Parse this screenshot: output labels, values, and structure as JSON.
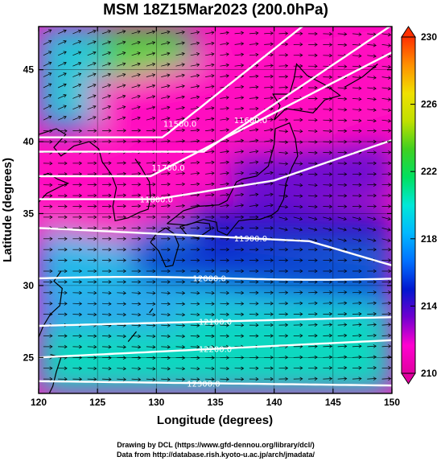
{
  "chart_data": {
    "type": "heatmap",
    "title": "MSM 18Z15Mar2023 (200.0hPa)",
    "xlabel": "Longitude (degrees)",
    "ylabel": "Latitude  (degrees)",
    "xlim": [
      120,
      150
    ],
    "ylim": [
      22.5,
      48
    ],
    "x_ticks": [
      "120",
      "125",
      "130",
      "135",
      "140",
      "145",
      "150"
    ],
    "y_ticks": [
      "25",
      "30",
      "35",
      "40",
      "45"
    ],
    "colorbar": {
      "ticks": [
        "210",
        "214",
        "218",
        "222",
        "226",
        "230"
      ],
      "range": [
        210,
        230
      ],
      "colors": [
        "#e000a0",
        "#ff00d0",
        "#7000d0",
        "#0018d0",
        "#0070ff",
        "#00b8ff",
        "#00e8d8",
        "#00e060",
        "#40d020",
        "#c0e000",
        "#f0e000",
        "#ff9000",
        "#ff3000"
      ]
    },
    "contours": [
      {
        "label": "11500.0",
        "lat": 40.6
      },
      {
        "label": "11600.0",
        "lat": 39.3
      },
      {
        "label": "11700.0",
        "lat": 37.8
      },
      {
        "label": "11800.0",
        "lat": 36.0
      },
      {
        "label": "11900.0",
        "lat": 33.2
      },
      {
        "label": "12000.0",
        "lat": 30.5
      },
      {
        "label": "12100.0",
        "lat": 27.5
      },
      {
        "label": "12200.0",
        "lat": 25.0
      },
      {
        "label": "12300.0",
        "lat": 23.2
      }
    ],
    "grid": true
  },
  "credits": {
    "line1": "Drawing by DCL (https://www.gfd-dennou.org/library/dcl/)",
    "line2": "Data from http://database.rish.kyoto-u.ac.jp/arch/jmadata/"
  }
}
